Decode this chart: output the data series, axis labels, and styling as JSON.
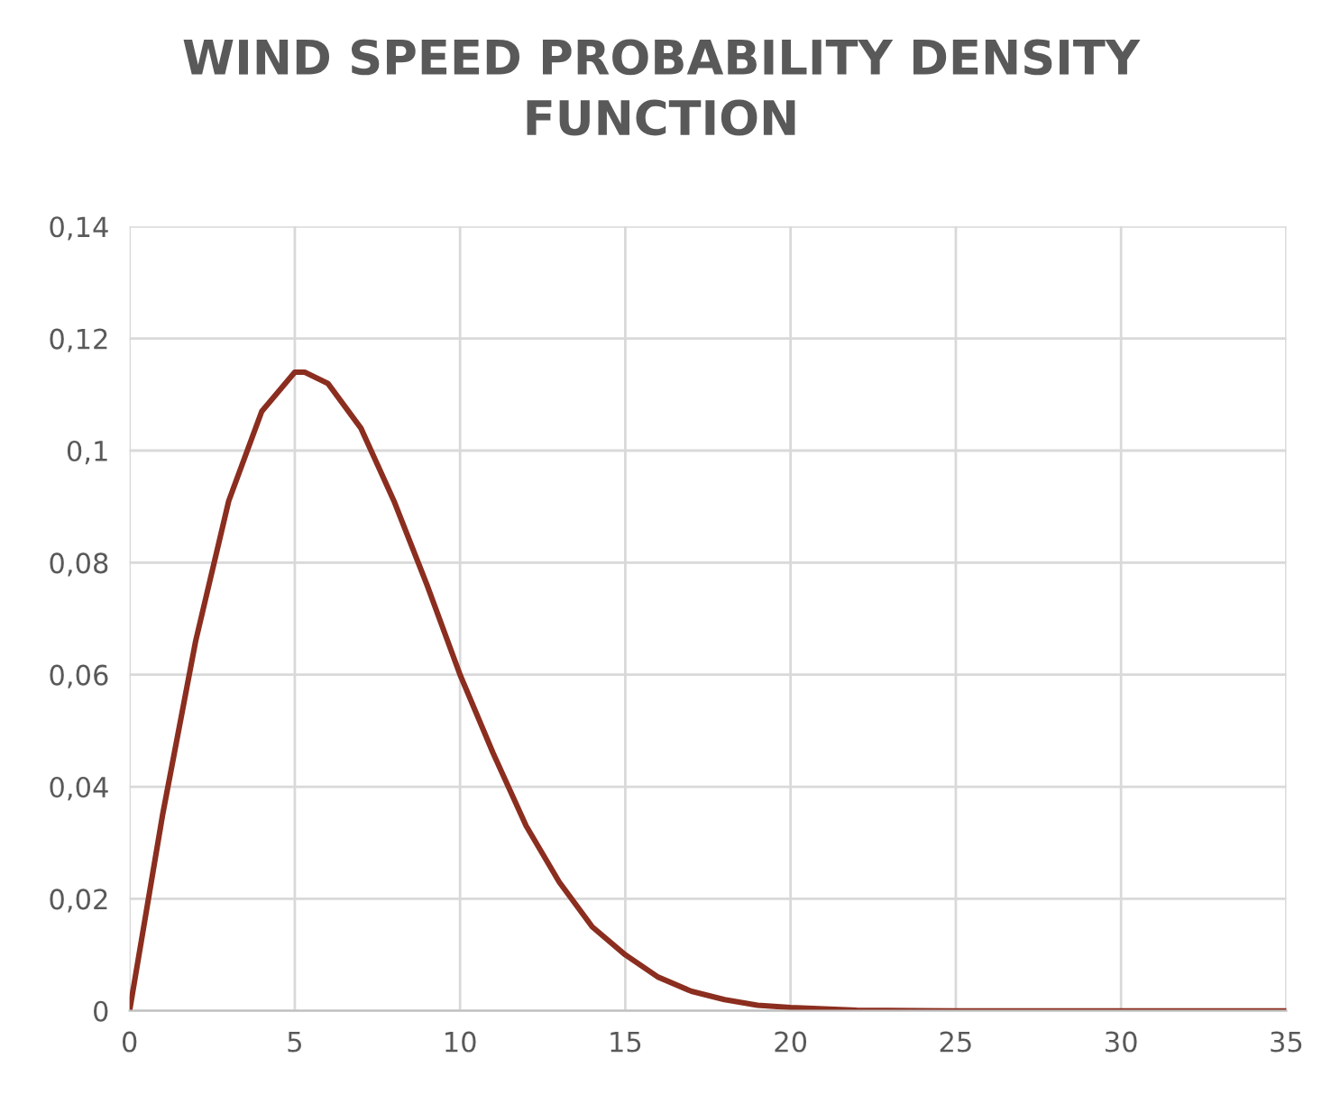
{
  "chart_data": {
    "type": "line",
    "title": "WIND SPEED PROBABILITY DENSITY\nFUNCTION",
    "x": [
      0,
      1,
      2,
      3,
      4,
      5,
      5.3,
      6,
      7,
      8,
      9,
      10,
      11,
      12,
      13,
      14,
      15,
      16,
      17,
      18,
      19,
      20,
      22,
      25,
      30,
      35
    ],
    "series": [
      {
        "color": "#8b2e1f",
        "values": [
          0,
          0.035,
          0.066,
          0.091,
          0.107,
          0.114,
          0.114,
          0.112,
          0.104,
          0.091,
          0.076,
          0.06,
          0.046,
          0.033,
          0.023,
          0.015,
          0.01,
          0.006,
          0.0035,
          0.002,
          0.001,
          0.0006,
          0.0001,
          0,
          0,
          0
        ]
      }
    ],
    "xlim": [
      0,
      35
    ],
    "xticks": [
      0,
      5,
      10,
      15,
      20,
      25,
      30,
      35
    ],
    "ylim": [
      0,
      0.14
    ],
    "yticks": [
      {
        "value": 0,
        "label": "0"
      },
      {
        "value": 0.02,
        "label": "0,02"
      },
      {
        "value": 0.04,
        "label": "0,04"
      },
      {
        "value": 0.06,
        "label": "0,06"
      },
      {
        "value": 0.08,
        "label": "0,08"
      },
      {
        "value": 0.1,
        "label": "0,1"
      },
      {
        "value": 0.12,
        "label": "0,12"
      },
      {
        "value": 0.14,
        "label": "0,14"
      }
    ],
    "grid": true,
    "legend": false,
    "marker": "none",
    "line_style": "solid"
  }
}
